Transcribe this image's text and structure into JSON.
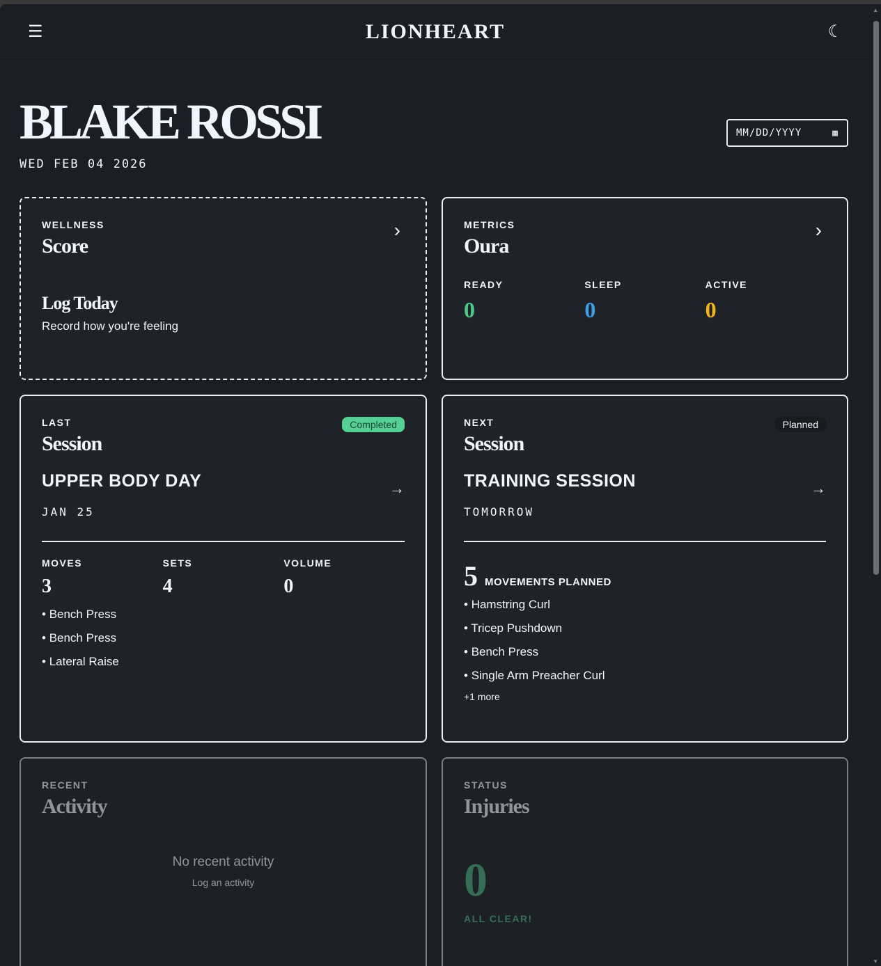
{
  "header": {
    "menu_icon": "hamburger-icon",
    "title": "LIONHEART",
    "theme_icon": "moon-icon"
  },
  "athlete": {
    "name": "BLAKE ROSSI",
    "date": "WED FEB 04 2026"
  },
  "date_input": {
    "placeholder": "MM/DD/YYYY",
    "icon": "calendar-icon"
  },
  "wellness": {
    "label": "WELLNESS",
    "title": "Score",
    "cta_title": "Log Today",
    "cta_sub": "Record how you're feeling"
  },
  "metrics": {
    "label": "METRICS",
    "title": "Oura",
    "stats": [
      {
        "label": "READY",
        "value": "0",
        "color": "#4fc98a"
      },
      {
        "label": "SLEEP",
        "value": "0",
        "color": "#3b9ee8"
      },
      {
        "label": "ACTIVE",
        "value": "0",
        "color": "#f2b417"
      }
    ]
  },
  "last_session": {
    "label": "LAST",
    "title": "Session",
    "badge": "Completed",
    "badge_color": "#55cf94",
    "name": "UPPER BODY DAY",
    "date": "JAN 25",
    "stats": [
      {
        "label": "MOVES",
        "value": "3"
      },
      {
        "label": "SETS",
        "value": "4"
      },
      {
        "label": "VOLUME",
        "value": "0"
      }
    ],
    "exercises": [
      "Bench Press",
      "Bench Press",
      "Lateral Raise"
    ]
  },
  "next_session": {
    "label": "NEXT",
    "title": "Session",
    "badge": "Planned",
    "name": "TRAINING SESSION",
    "date": "TOMORROW",
    "count": "5",
    "count_label": "MOVEMENTS PLANNED",
    "exercises": [
      "Hamstring Curl",
      "Tricep Pushdown",
      "Bench Press",
      "Single Arm Preacher Curl"
    ],
    "more": "+1 more"
  },
  "activity": {
    "label": "RECENT",
    "title": "Activity",
    "empty": "No recent activity",
    "link": "Log an activity"
  },
  "injuries": {
    "label": "STATUS",
    "title": "Injuries",
    "count": "0",
    "status": "ALL CLEAR!",
    "color": "#4caf7d"
  }
}
